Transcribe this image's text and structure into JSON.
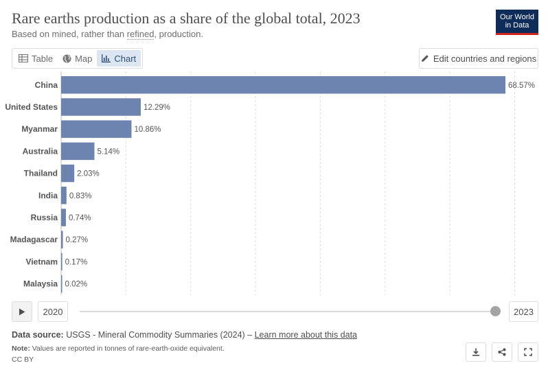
{
  "header": {
    "title": "Rare earths production as a share of the global total, 2023",
    "subtitle_pre": "Based on mined, rather than ",
    "subtitle_link": "refined",
    "subtitle_post": ", production."
  },
  "logo": {
    "line1": "Our World",
    "line2": "in Data"
  },
  "tabs": [
    {
      "label": "Table",
      "icon": "table-icon",
      "active": false
    },
    {
      "label": "Map",
      "icon": "globe-icon",
      "active": false
    },
    {
      "label": "Chart",
      "icon": "chart-icon",
      "active": true
    }
  ],
  "edit_button": {
    "label": "Edit countries and regions",
    "icon": "pencil-icon"
  },
  "chart_data": {
    "type": "bar",
    "orientation": "horizontal",
    "categories": [
      "China",
      "United States",
      "Myanmar",
      "Australia",
      "Thailand",
      "India",
      "Russia",
      "Madagascar",
      "Vietnam",
      "Malaysia"
    ],
    "values": [
      68.57,
      12.29,
      10.86,
      5.14,
      2.03,
      0.83,
      0.74,
      0.27,
      0.17,
      0.02
    ],
    "value_labels": [
      "68.57%",
      "12.29%",
      "10.86%",
      "5.14%",
      "2.03%",
      "0.83%",
      "0.74%",
      "0.27%",
      "0.17%",
      "0.02%"
    ],
    "unit": "%",
    "xlim": [
      0,
      70
    ],
    "grid": true,
    "bar_color": "#6d84b0"
  },
  "timeline": {
    "start_year": "2020",
    "end_year": "2023",
    "selected_fraction": 1.0
  },
  "footer": {
    "source_label": "Data source:",
    "source_text": " USGS - Mineral Commodity Summaries (2024) – ",
    "source_link": "Learn more about this data",
    "note_label": "Note:",
    "note_text": " Values are reported in tonnes of rare-earth-oxide equivalent.",
    "license": "CC BY"
  },
  "actions": [
    {
      "name": "download-button",
      "icon": "download-icon"
    },
    {
      "name": "share-button",
      "icon": "share-icon"
    },
    {
      "name": "fullscreen-button",
      "icon": "fullscreen-icon"
    }
  ],
  "colors": {
    "accent": "#dce5f2",
    "brand": "#0d2c5a",
    "brand_red": "#ce261e"
  }
}
